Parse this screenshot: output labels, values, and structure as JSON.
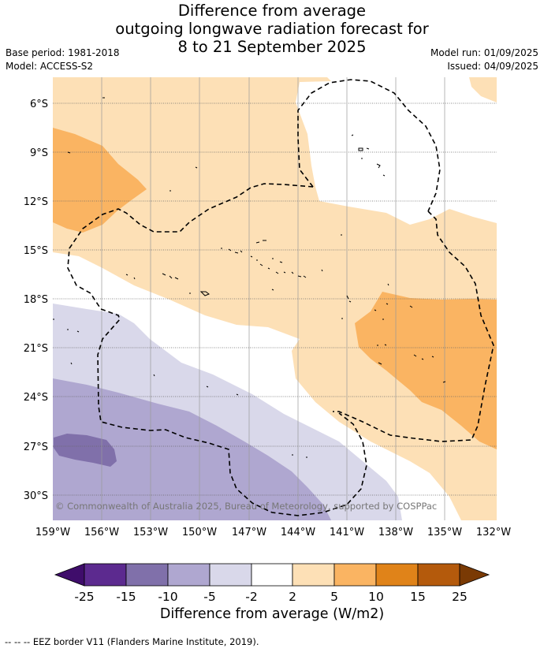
{
  "title_lines": [
    "Difference from average",
    "outgoing longwave radiation forecast for",
    "8 to 21 September 2025"
  ],
  "meta_left": [
    "Base period: 1981-2018",
    "Model: ACCESS-S2"
  ],
  "meta_right": [
    "Model run: 01/09/2025",
    "Issued: 04/09/2025"
  ],
  "lat_labels": [
    "6°S",
    "9°S",
    "12°S",
    "15°S",
    "18°S",
    "21°S",
    "24°S",
    "27°S",
    "30°S"
  ],
  "lon_labels": [
    "159°W",
    "156°W",
    "153°W",
    "150°W",
    "147°W",
    "144°W",
    "141°W",
    "138°W",
    "135°W",
    "132°W"
  ],
  "copyright": "© Commonwealth of Australia 2025, Bureau of Meteorology, supported by COSPPac",
  "colorbar": {
    "title": "Difference from average (W/m2)",
    "tick_labels": [
      "-25",
      "-15",
      "-10",
      "-5",
      "-2",
      "2",
      "5",
      "10",
      "15",
      "25"
    ],
    "colors": [
      "#3f0d6b",
      "#5c2a8f",
      "#8070aa",
      "#afa7d0",
      "#d9d8ea",
      "#ffffff",
      "#fde0b6",
      "#fab462",
      "#e08319",
      "#b45a0c",
      "#7a3a04"
    ]
  },
  "footnote": "--  --  -- EEZ border V11 (Flanders Marine Institute, 2019)."
}
